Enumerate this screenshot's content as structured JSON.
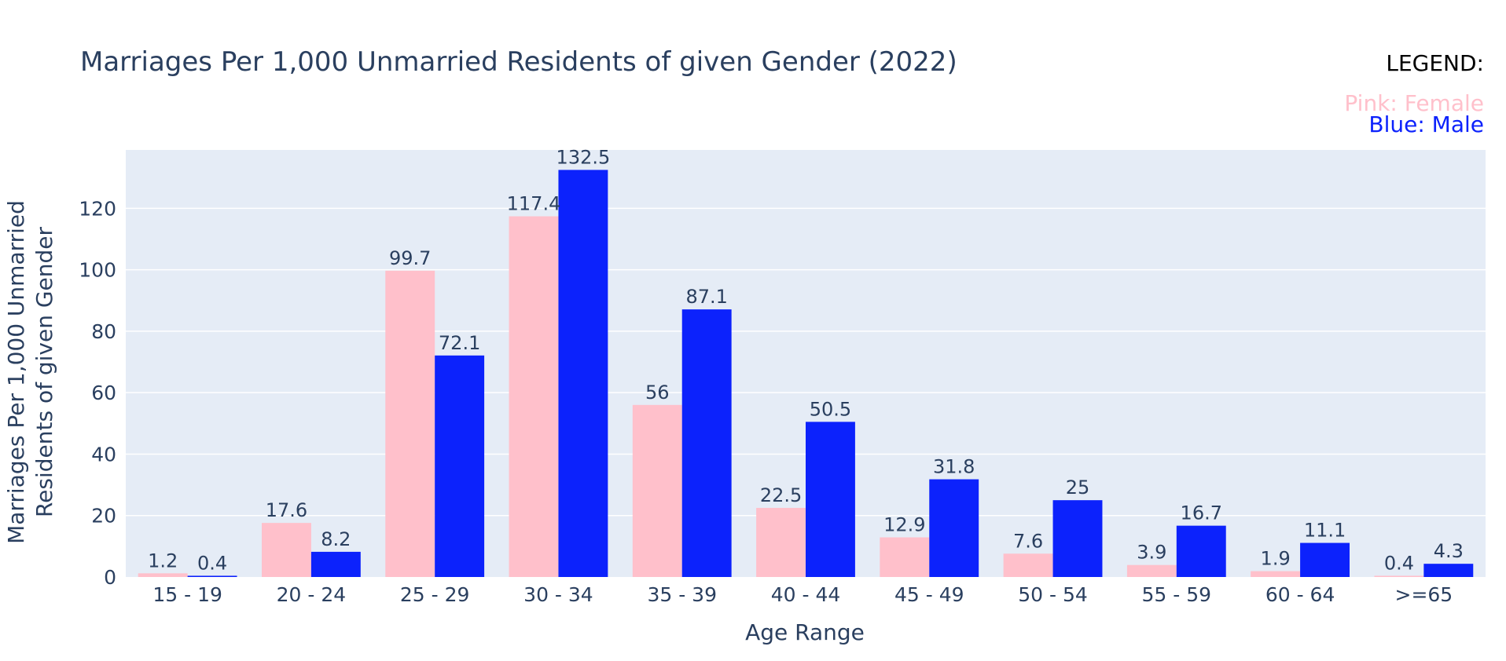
{
  "chart_data": {
    "type": "bar",
    "title": "Marriages Per 1,000 Unmarried Residents of given Gender (2022)",
    "xlabel": "Age Range",
    "ylabel_lines": [
      "Marriages Per 1,000 Unmarried",
      "Residents of given Gender"
    ],
    "categories": [
      "15 - 19",
      "20 - 24",
      "25 - 29",
      "30 - 34",
      "35 - 39",
      "40 - 44",
      "45 - 49",
      "50 - 54",
      "55 - 59",
      "60 - 64",
      ">=65"
    ],
    "series": [
      {
        "name": "Female",
        "color": "#ffc0cb",
        "values": [
          1.2,
          17.6,
          99.7,
          117.4,
          56,
          22.5,
          12.9,
          7.6,
          3.9,
          1.9,
          0.4
        ]
      },
      {
        "name": "Male",
        "color": "#0c22fc",
        "values": [
          0.4,
          8.2,
          72.1,
          132.5,
          87.1,
          50.5,
          31.8,
          25,
          16.7,
          11.1,
          4.3
        ]
      }
    ],
    "ylim": [
      0,
      139
    ],
    "yticks": [
      0,
      20,
      40,
      60,
      80,
      100,
      120
    ],
    "grid": true,
    "legend": {
      "heading": "LEGEND:",
      "entries": [
        {
          "text": "Pink: Female",
          "color": "#ffc0cb"
        },
        {
          "text": "Blue: Male",
          "color": "#0c22fc"
        }
      ],
      "placement": "top-right"
    },
    "plot_bg": "#e5ecf6"
  }
}
